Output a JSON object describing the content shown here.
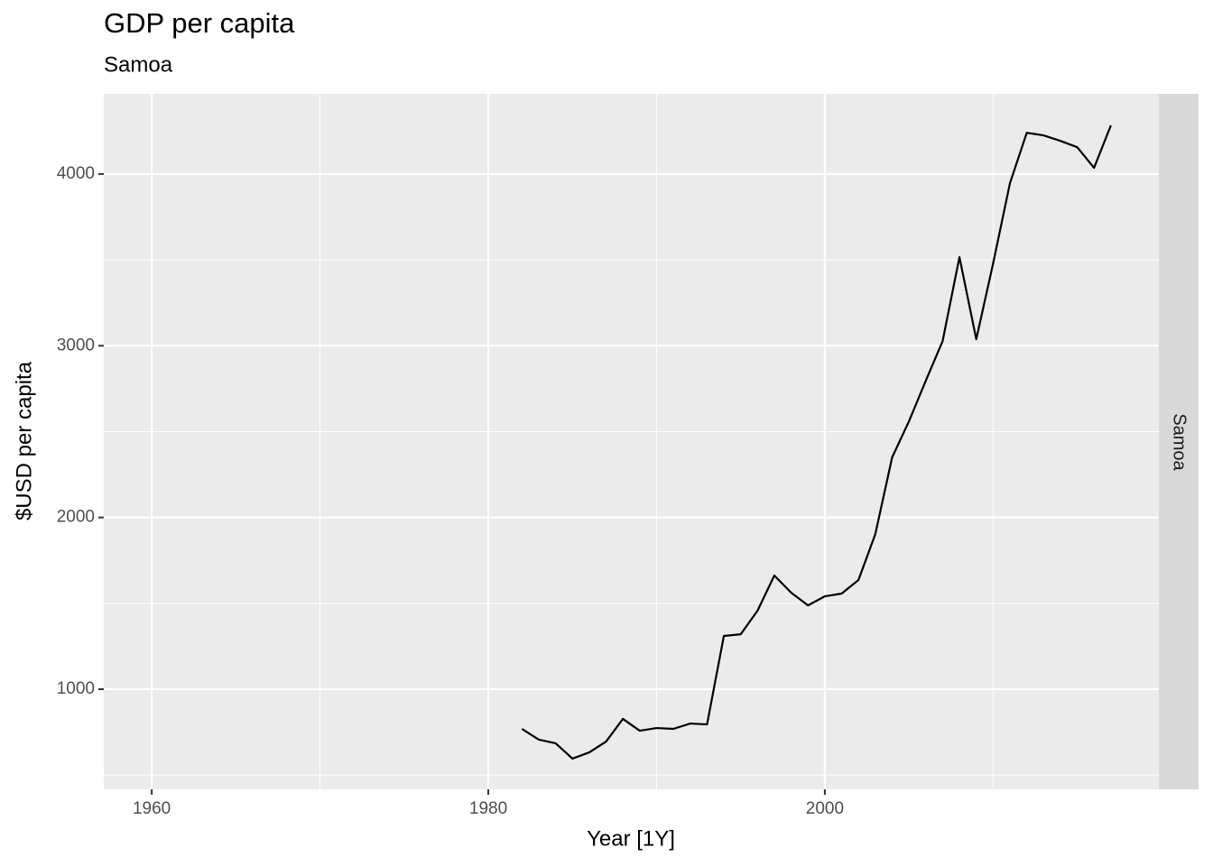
{
  "chart_data": {
    "type": "line",
    "title": "GDP per capita",
    "subtitle": "Samoa",
    "x_label": "Year [1Y]",
    "y_label": "$USD per capita",
    "facet": "Samoa",
    "x": [
      1982,
      1983,
      1984,
      1985,
      1986,
      1987,
      1988,
      1989,
      1990,
      1991,
      1992,
      1993,
      1994,
      1995,
      1996,
      1997,
      1998,
      1999,
      2000,
      2001,
      2002,
      2003,
      2004,
      2005,
      2006,
      2007,
      2008,
      2009,
      2010,
      2011,
      2012,
      2013,
      2014,
      2015,
      2016,
      2017
    ],
    "series": [
      {
        "name": "Samoa",
        "color": "#000000",
        "values": [
          769,
          706,
          685,
          596,
          632,
          695,
          827,
          758,
          774,
          769,
          800,
          795,
          1310,
          1320,
          1457,
          1662,
          1562,
          1488,
          1541,
          1557,
          1636,
          1903,
          2350,
          2560,
          2796,
          3027,
          3516,
          3038,
          3479,
          3946,
          4240,
          4225,
          4193,
          4156,
          4036,
          4283
        ]
      }
    ],
    "xlim": [
      1957.15,
      2019.85
    ],
    "xticks": [
      1960,
      1980,
      2000
    ],
    "xminor": [
      1970,
      1990,
      2010
    ],
    "ylim": [
      417,
      4467
    ],
    "yticks": [
      1000,
      2000,
      3000,
      4000
    ],
    "yminor": [
      500,
      1500,
      2500,
      3500
    ],
    "grid": true
  }
}
